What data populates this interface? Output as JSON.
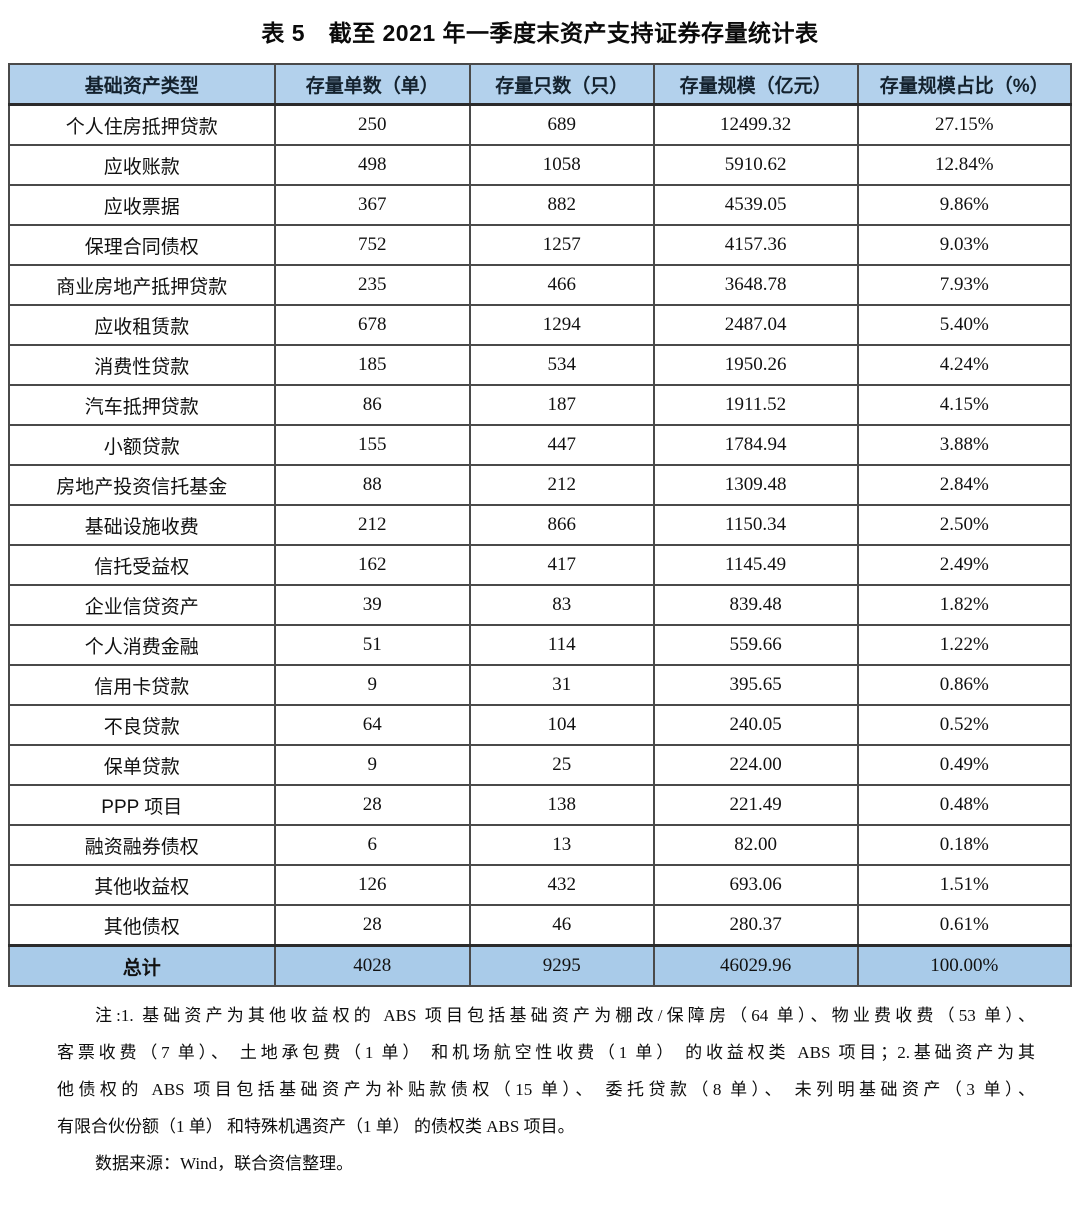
{
  "title": "表 5　截至 2021 年一季度末资产支持证券存量统计表",
  "table": {
    "headers": [
      "基础资产类型",
      "存量单数（单）",
      "存量只数（只）",
      "存量规模（亿元）",
      "存量规模占比（%）"
    ],
    "rows": [
      [
        "个人住房抵押贷款",
        "250",
        "689",
        "12499.32",
        "27.15%"
      ],
      [
        "应收账款",
        "498",
        "1058",
        "5910.62",
        "12.84%"
      ],
      [
        "应收票据",
        "367",
        "882",
        "4539.05",
        "9.86%"
      ],
      [
        "保理合同债权",
        "752",
        "1257",
        "4157.36",
        "9.03%"
      ],
      [
        "商业房地产抵押贷款",
        "235",
        "466",
        "3648.78",
        "7.93%"
      ],
      [
        "应收租赁款",
        "678",
        "1294",
        "2487.04",
        "5.40%"
      ],
      [
        "消费性贷款",
        "185",
        "534",
        "1950.26",
        "4.24%"
      ],
      [
        "汽车抵押贷款",
        "86",
        "187",
        "1911.52",
        "4.15%"
      ],
      [
        "小额贷款",
        "155",
        "447",
        "1784.94",
        "3.88%"
      ],
      [
        "房地产投资信托基金",
        "88",
        "212",
        "1309.48",
        "2.84%"
      ],
      [
        "基础设施收费",
        "212",
        "866",
        "1150.34",
        "2.50%"
      ],
      [
        "信托受益权",
        "162",
        "417",
        "1145.49",
        "2.49%"
      ],
      [
        "企业信贷资产",
        "39",
        "83",
        "839.48",
        "1.82%"
      ],
      [
        "个人消费金融",
        "51",
        "114",
        "559.66",
        "1.22%"
      ],
      [
        "信用卡贷款",
        "9",
        "31",
        "395.65",
        "0.86%"
      ],
      [
        "不良贷款",
        "64",
        "104",
        "240.05",
        "0.52%"
      ],
      [
        "保单贷款",
        "9",
        "25",
        "224.00",
        "0.49%"
      ],
      [
        "PPP 项目",
        "28",
        "138",
        "221.49",
        "0.48%"
      ],
      [
        "融资融券债权",
        "6",
        "13",
        "82.00",
        "0.18%"
      ],
      [
        "其他收益权",
        "126",
        "432",
        "693.06",
        "1.51%"
      ],
      [
        "其他债权",
        "28",
        "46",
        "280.37",
        "0.61%"
      ]
    ],
    "total": [
      "总计",
      "4028",
      "9295",
      "46029.96",
      "100.00%"
    ]
  },
  "notes": {
    "lines": [
      "注:1. 基础资产为其他收益权的 ABS 项目包括基础资产为棚改/保障房（64 单）、物业费收费（53 单）、",
      "客票收费（7 单）、 土地承包费（1 单） 和机场航空性收费（1 单） 的收益权类 ABS 项目；2.基础资产为其",
      "他债权的 ABS 项目包括基础资产为补贴款债权（15 单）、 委托贷款（8 单）、 未列明基础资产（3 单）、",
      "有限合伙份额（1 单） 和特殊机遇资产（1 单） 的债权类 ABS 项目。"
    ],
    "source": "数据来源：Wind，联合资信整理。"
  },
  "colors": {
    "header_bg": "#b3d1ec",
    "total_bg": "#a9cbe9"
  }
}
